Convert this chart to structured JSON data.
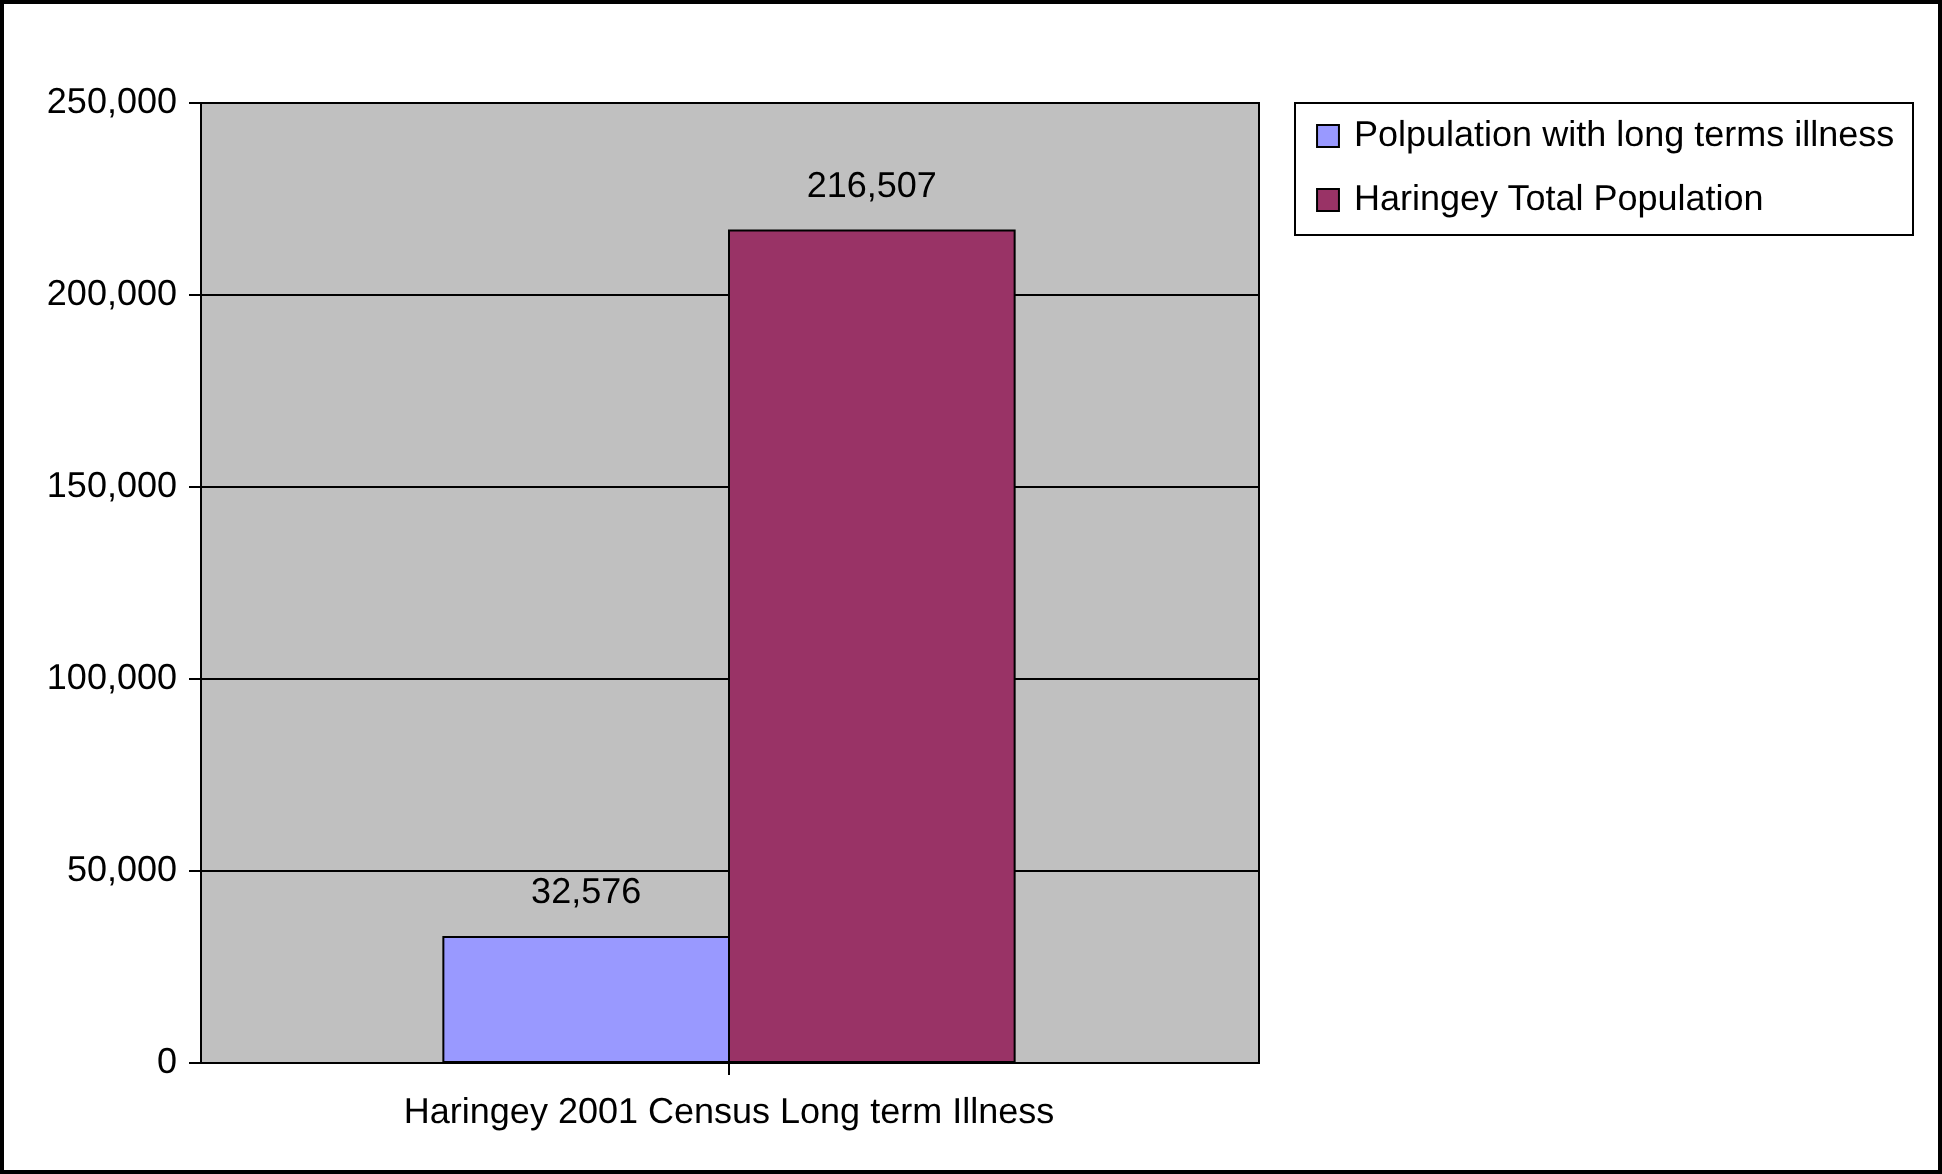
{
  "chart_data": {
    "type": "bar",
    "categories": [
      "Haringey 2001 Census Long term Illness"
    ],
    "series": [
      {
        "name": "Polpulation with long terms illness",
        "color": "#9999ff",
        "values": [
          32576
        ],
        "value_labels": [
          "32,576"
        ]
      },
      {
        "name": "Haringey Total Population",
        "color": "#993366",
        "values": [
          216507
        ],
        "value_labels": [
          "216,507"
        ]
      }
    ],
    "ylim": [
      0,
      250000
    ],
    "yticks": [
      {
        "value": 0,
        "label": "0"
      },
      {
        "value": 50000,
        "label": "50,000"
      },
      {
        "value": 100000,
        "label": "100,000"
      },
      {
        "value": 150000,
        "label": "150,000"
      },
      {
        "value": 200000,
        "label": "200,000"
      },
      {
        "value": 250000,
        "label": "250,000"
      }
    ],
    "grid": "y",
    "legend": "right"
  }
}
